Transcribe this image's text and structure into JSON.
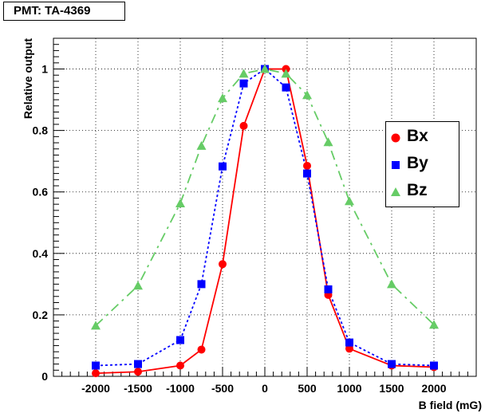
{
  "title": "PMT: TA-4369",
  "chart_data": {
    "type": "line",
    "xlabel": "B field (mG)",
    "ylabel": "Relative output",
    "xlim": [
      -2500,
      2500
    ],
    "ylim": [
      0,
      1.1
    ],
    "x_ticks": [
      "-2000",
      "-1500",
      "-1000",
      "-500",
      "0",
      "500",
      "1000",
      "1500",
      "2000"
    ],
    "y_ticks": [
      "0",
      "0.2",
      "0.4",
      "0.6",
      "0.8",
      "1"
    ],
    "grid": true,
    "legend_position": "right",
    "series": [
      {
        "name": "Bx",
        "color": "#ff0000",
        "marker": "circle",
        "line": "solid",
        "x": [
          -2000,
          -1500,
          -1000,
          -750,
          -500,
          -250,
          0,
          250,
          500,
          750,
          1000,
          1500,
          2000
        ],
        "y": [
          0.01,
          0.015,
          0.035,
          0.087,
          0.365,
          0.815,
          1.0,
          1.0,
          0.685,
          0.265,
          0.09,
          0.035,
          0.03
        ]
      },
      {
        "name": "By",
        "color": "#0000ff",
        "marker": "square",
        "line": "dotted",
        "x": [
          -2000,
          -1500,
          -1000,
          -750,
          -500,
          -250,
          0,
          250,
          500,
          750,
          1000,
          1500,
          2000
        ],
        "y": [
          0.035,
          0.04,
          0.118,
          0.3,
          0.683,
          0.953,
          1.0,
          0.94,
          0.66,
          0.283,
          0.11,
          0.04,
          0.035
        ]
      },
      {
        "name": "Bz",
        "color": "#66cc66",
        "marker": "triangle",
        "line": "dashdot",
        "x": [
          -2000,
          -1500,
          -1000,
          -750,
          -500,
          -250,
          0,
          250,
          500,
          750,
          1000,
          1500,
          2000
        ],
        "y": [
          0.165,
          0.295,
          0.563,
          0.75,
          0.905,
          0.985,
          1.0,
          0.985,
          0.915,
          0.762,
          0.57,
          0.3,
          0.168
        ]
      }
    ]
  }
}
